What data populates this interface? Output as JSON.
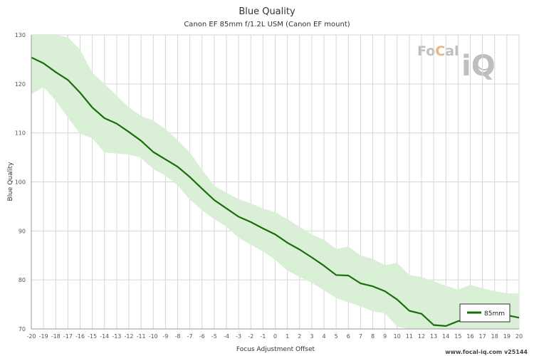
{
  "chart_data": {
    "type": "line",
    "title": "Blue Quality",
    "subtitle": "Canon EF 85mm f/1.2L USM (Canon EF mount)",
    "xlabel": "Focus Adjustment Offset",
    "ylabel": "Blue Quality",
    "xlim": [
      -20,
      20
    ],
    "ylim": [
      70,
      130
    ],
    "x_ticks": [
      -20,
      -19,
      -18,
      -17,
      -16,
      -15,
      -14,
      -13,
      -12,
      -11,
      -10,
      -9,
      -8,
      -7,
      -6,
      -5,
      -4,
      -3,
      -2,
      -1,
      0,
      1,
      2,
      3,
      4,
      5,
      6,
      7,
      8,
      9,
      10,
      11,
      12,
      13,
      14,
      15,
      16,
      17,
      18,
      19,
      20
    ],
    "y_ticks": [
      70,
      80,
      90,
      100,
      110,
      120,
      130
    ],
    "grid": true,
    "legend": "bottom-right",
    "series": [
      {
        "name": "85mm",
        "color": "#1a6e0a",
        "band_color": "#d9efd6",
        "x": [
          -20,
          -19,
          -18,
          -17,
          -16,
          -15,
          -14,
          -13,
          -12,
          -11,
          -10,
          -9,
          -8,
          -7,
          -6,
          -5,
          -4,
          -3,
          -2,
          -1,
          0,
          1,
          2,
          3,
          4,
          5,
          6,
          7,
          8,
          9,
          10,
          11,
          12,
          13,
          14,
          15,
          16,
          17,
          18,
          19,
          20
        ],
        "values": [
          125.4,
          124.2,
          122.4,
          120.8,
          118.2,
          115.2,
          113.0,
          111.9,
          110.2,
          108.4,
          106.1,
          104.6,
          103.1,
          101.0,
          98.6,
          96.3,
          94.6,
          92.9,
          91.8,
          90.5,
          89.3,
          87.6,
          86.2,
          84.6,
          82.9,
          81.0,
          80.9,
          79.3,
          78.7,
          77.7,
          76.0,
          73.7,
          73.1,
          70.8,
          70.6,
          71.6,
          71.9,
          72.5,
          73.1,
          72.8,
          72.3
        ],
        "upper": [
          130.5,
          130.5,
          130.5,
          129.5,
          127.0,
          122.3,
          120.0,
          117.6,
          115.2,
          113.5,
          112.5,
          110.8,
          108.5,
          106.0,
          102.5,
          99.2,
          97.8,
          96.5,
          95.6,
          94.6,
          93.8,
          92.4,
          90.8,
          89.3,
          88.2,
          86.3,
          86.8,
          85.0,
          84.3,
          83.0,
          83.5,
          81.0,
          80.6,
          79.7,
          78.8,
          78.0,
          79.0,
          78.3,
          77.7,
          77.3,
          77.2
        ],
        "lower": [
          117.9,
          119.4,
          116.6,
          113.1,
          109.8,
          108.9,
          106.0,
          105.8,
          105.6,
          104.9,
          102.6,
          101.3,
          99.3,
          96.4,
          94.2,
          92.4,
          90.9,
          88.6,
          87.2,
          85.8,
          84.1,
          81.9,
          80.6,
          79.4,
          77.9,
          76.3,
          75.4,
          74.6,
          73.6,
          73.2,
          70.5,
          69.9,
          69.9,
          69.7,
          69.9,
          69.8,
          69.7,
          69.8,
          70.1,
          70.0,
          70.0
        ]
      }
    ]
  },
  "logo": {
    "text_left": "Fo",
    "text_c": "C",
    "text_right": "al",
    "text_iq": "iQ"
  },
  "footer": "www.focal-iq.com  v25144"
}
